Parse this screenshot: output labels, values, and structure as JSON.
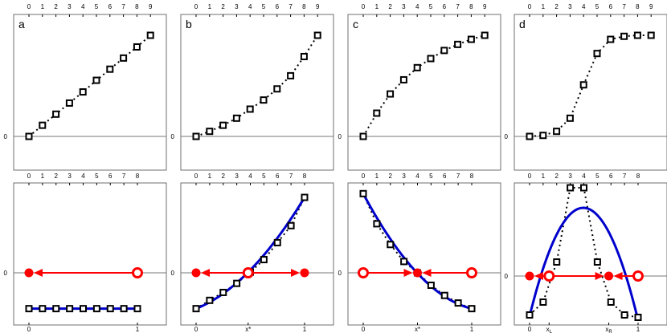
{
  "chart_data": [
    {
      "panel": "a",
      "type": "scatter",
      "title": "a",
      "x_ticks": [
        "0",
        "1",
        "2",
        "3",
        "4",
        "5",
        "6",
        "7",
        "8",
        "9"
      ],
      "y_ticks": [
        "0"
      ],
      "series": [
        {
          "x": [
            0,
            1,
            2,
            3,
            4,
            5,
            6,
            7,
            8,
            9
          ],
          "values": [
            0,
            0.11,
            0.22,
            0.33,
            0.44,
            0.555,
            0.665,
            0.775,
            0.885,
            1.0
          ],
          "marker": "square",
          "line": "dotted"
        }
      ]
    },
    {
      "panel": "b",
      "type": "scatter",
      "title": "b",
      "x_ticks": [
        "0",
        "1",
        "2",
        "3",
        "4",
        "5",
        "6",
        "7",
        "8",
        "9"
      ],
      "y_ticks": [
        "0"
      ],
      "series": [
        {
          "x": [
            0,
            1,
            2,
            3,
            4,
            5,
            6,
            7,
            8,
            9
          ],
          "values": [
            0,
            0.05,
            0.11,
            0.18,
            0.27,
            0.36,
            0.47,
            0.6,
            0.79,
            1.0
          ],
          "marker": "square",
          "line": "dotted"
        }
      ]
    },
    {
      "panel": "c",
      "type": "scatter",
      "title": "c",
      "x_ticks": [
        "0",
        "1",
        "2",
        "3",
        "4",
        "5",
        "6",
        "7",
        "8",
        "9"
      ],
      "y_ticks": [
        "0"
      ],
      "series": [
        {
          "x": [
            0,
            1,
            2,
            3,
            4,
            5,
            6,
            7,
            8,
            9
          ],
          "values": [
            0,
            0.23,
            0.42,
            0.56,
            0.68,
            0.77,
            0.85,
            0.91,
            0.96,
            1.0
          ],
          "marker": "square",
          "line": "dotted"
        }
      ]
    },
    {
      "panel": "d",
      "type": "scatter",
      "title": "d",
      "x_ticks": [
        "0",
        "1",
        "2",
        "3",
        "4",
        "5",
        "6",
        "7",
        "8",
        "9"
      ],
      "y_ticks": [
        "0"
      ],
      "series": [
        {
          "x": [
            0,
            1,
            2,
            3,
            4,
            5,
            6,
            7,
            8,
            9
          ],
          "values": [
            0,
            0.01,
            0.05,
            0.18,
            0.51,
            0.82,
            0.96,
            0.99,
            1.0,
            1.0
          ],
          "marker": "square",
          "line": "dotted"
        }
      ]
    },
    {
      "panel": "bottom-a",
      "type": "line",
      "x_ticks": [
        "0",
        "1"
      ],
      "top_ticks": [
        "0",
        "1",
        "2",
        "3",
        "4",
        "5",
        "6",
        "7",
        "8"
      ],
      "y_ticks": [
        "0"
      ],
      "series": [
        {
          "x": [
            0,
            0.125,
            0.25,
            0.375,
            0.5,
            0.625,
            0.75,
            0.875,
            1
          ],
          "values": [
            -0.95,
            -0.95,
            -0.95,
            -0.95,
            -0.95,
            -0.95,
            -0.95,
            -0.95,
            -0.95
          ],
          "marker": "square",
          "curve": "blue"
        }
      ],
      "fixed_points": [
        {
          "x": 0,
          "type": "stable"
        },
        {
          "x": 1,
          "type": "unstable"
        }
      ],
      "flow": [
        {
          "from": 1,
          "to": 0
        }
      ]
    },
    {
      "panel": "bottom-b",
      "type": "line",
      "x_ticks": [
        "0",
        "x*",
        "1"
      ],
      "top_ticks": [
        "0",
        "1",
        "2",
        "3",
        "4",
        "5",
        "6",
        "7",
        "8"
      ],
      "y_ticks": [
        "0"
      ],
      "series": [
        {
          "x": [
            0,
            0.125,
            0.25,
            0.375,
            0.5,
            0.625,
            0.75,
            0.875,
            1
          ],
          "values": [
            -0.95,
            -0.73,
            -0.52,
            -0.28,
            0.02,
            0.35,
            0.8,
            1.25,
            2.0
          ],
          "marker": "square",
          "curve": "blue"
        }
      ],
      "fixed_points": [
        {
          "x": 0,
          "type": "stable"
        },
        {
          "x": 0.48,
          "type": "unstable"
        },
        {
          "x": 1,
          "type": "stable"
        }
      ],
      "flow": [
        {
          "from": 0.48,
          "to": 0
        },
        {
          "from": 0.48,
          "to": 1
        }
      ]
    },
    {
      "panel": "bottom-c",
      "type": "line",
      "x_ticks": [
        "0",
        "x*",
        "1"
      ],
      "top_ticks": [
        "0",
        "1",
        "2",
        "3",
        "4",
        "5",
        "6",
        "7",
        "8"
      ],
      "y_ticks": [
        "0"
      ],
      "series": [
        {
          "x": [
            0,
            0.125,
            0.25,
            0.375,
            0.5,
            0.625,
            0.75,
            0.875,
            1
          ],
          "values": [
            2.1,
            1.3,
            0.75,
            0.3,
            0,
            -0.33,
            -0.6,
            -0.8,
            -0.95
          ],
          "marker": "square",
          "curve": "blue"
        }
      ],
      "fixed_points": [
        {
          "x": 0,
          "type": "unstable"
        },
        {
          "x": 0.5,
          "type": "stable"
        },
        {
          "x": 1,
          "type": "unstable"
        }
      ],
      "flow": [
        {
          "from": 0,
          "to": 0.5
        },
        {
          "from": 1,
          "to": 0.5
        }
      ]
    },
    {
      "panel": "bottom-d",
      "type": "line",
      "x_ticks": [
        "0",
        "x_L",
        "x_R",
        "1"
      ],
      "top_ticks": [
        "0",
        "1",
        "2",
        "3",
        "4",
        "5",
        "6",
        "7",
        "8"
      ],
      "y_ticks": [
        "0"
      ],
      "series": [
        {
          "x": [
            0,
            0.125,
            0.25,
            0.375,
            0.5,
            0.625,
            0.75,
            0.875,
            1
          ],
          "values": [
            -0.97,
            -0.65,
            0.35,
            2.2,
            2.2,
            0.35,
            -0.65,
            -0.97,
            -1.03
          ],
          "marker": "square",
          "curve": "blue"
        }
      ],
      "fixed_points": [
        {
          "x": 0,
          "type": "stable"
        },
        {
          "x": 0.18,
          "type": "unstable"
        },
        {
          "x": 0.73,
          "type": "stable"
        },
        {
          "x": 1,
          "type": "unstable"
        }
      ],
      "flow": [
        {
          "from": 0.18,
          "to": 0
        },
        {
          "from": 0.18,
          "to": 0.73
        },
        {
          "from": 1,
          "to": 0.73
        }
      ]
    }
  ]
}
